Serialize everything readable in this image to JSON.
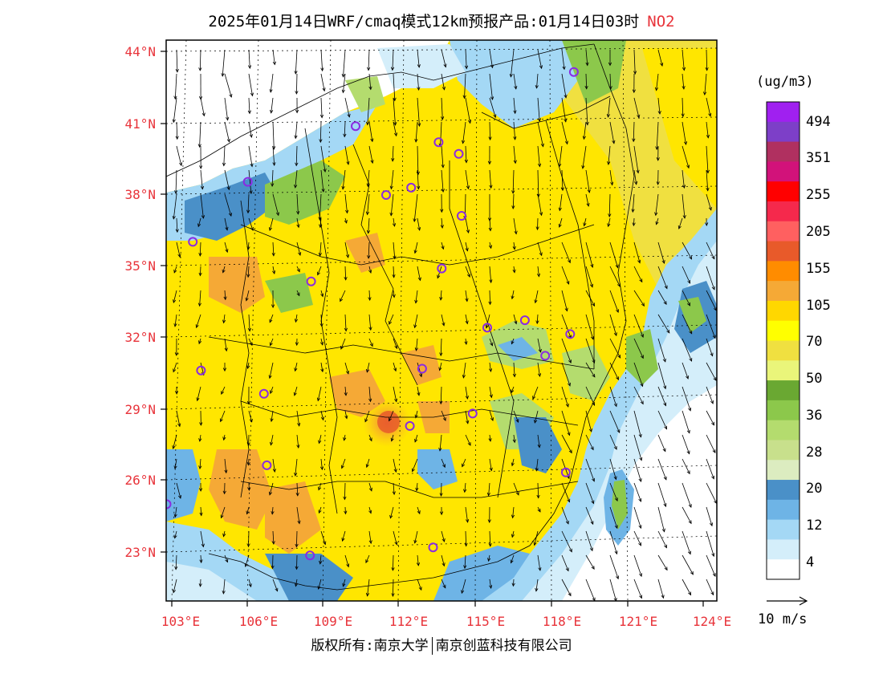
{
  "title": {
    "main": "2025年01月14日WRF/cmaq模式12km预报产品:01月14日03时",
    "species": "NO2"
  },
  "axes": {
    "lat_labels": [
      "44°N",
      "41°N",
      "38°N",
      "35°N",
      "32°N",
      "29°N",
      "26°N",
      "23°N"
    ],
    "lon_labels": [
      "103°E",
      "106°E",
      "109°E",
      "112°E",
      "115°E",
      "118°E",
      "121°E",
      "124°E"
    ]
  },
  "colorbar": {
    "unit": "(ug/m3)",
    "labels": [
      "494",
      "351",
      "255",
      "205",
      "155",
      "105",
      "70",
      "50",
      "36",
      "28",
      "20",
      "12",
      "4"
    ],
    "colors": [
      "#a020f0",
      "#7d3fc8",
      "#b03060",
      "#d2127a",
      "#ff0000",
      "#f5294c",
      "#ff6060",
      "#e85a2a",
      "#ff8c00",
      "#f5a936",
      "#ffd700",
      "#ffff00",
      "#f0e040",
      "#eaf57a",
      "#6aa832",
      "#8cc84b",
      "#b4dc6e",
      "#c8e08c",
      "#dcecc0",
      "#4a90c8",
      "#6eb4e6",
      "#a4d8f5",
      "#d4eefa",
      "#ffffff"
    ]
  },
  "wind": {
    "reference": "10 m/s"
  },
  "copyright": {
    "left": "版权所有:南京大学",
    "right": "南京创蓝科技有限公司"
  },
  "stations": [
    [
      119.0,
      43.0
    ],
    [
      110.3,
      40.8
    ],
    [
      113.6,
      40.1
    ],
    [
      114.4,
      39.6
    ],
    [
      106.0,
      38.5
    ],
    [
      111.5,
      37.9
    ],
    [
      112.5,
      38.2
    ],
    [
      114.5,
      37.0
    ],
    [
      103.8,
      36.0
    ],
    [
      113.7,
      34.8
    ],
    [
      108.5,
      34.3
    ],
    [
      117.0,
      32.6
    ],
    [
      115.5,
      32.3
    ],
    [
      118.8,
      32.0
    ],
    [
      104.1,
      30.6
    ],
    [
      112.9,
      30.6
    ],
    [
      117.8,
      31.1
    ],
    [
      106.6,
      29.6
    ],
    [
      114.9,
      28.7
    ],
    [
      112.4,
      28.2
    ],
    [
      106.7,
      26.6
    ],
    [
      118.6,
      26.2
    ],
    [
      102.7,
      25.0
    ],
    [
      113.3,
      23.1
    ],
    [
      108.4,
      22.8
    ]
  ]
}
